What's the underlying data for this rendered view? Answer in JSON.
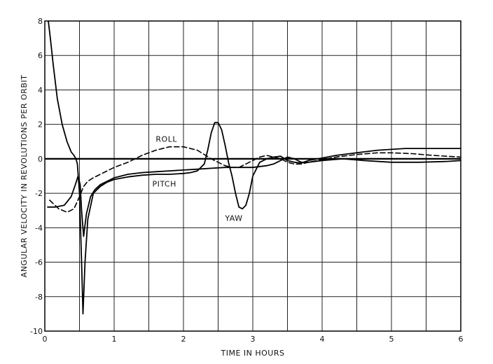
{
  "chart_data": {
    "type": "line",
    "title": "",
    "xlabel": "TIME IN HOURS",
    "ylabel": "ANGULAR VELOCITY IN REVOLUTIONS PER ORBIT",
    "xlim": [
      0,
      6
    ],
    "ylim": [
      -10,
      8
    ],
    "x_tick_values": [
      0,
      1,
      2,
      3,
      4,
      5,
      6
    ],
    "x_tick_labels": [
      "0",
      "1",
      "2",
      "3",
      "4",
      "5",
      "6"
    ],
    "x_grid_step": 0.5,
    "y_tick_values": [
      8,
      6,
      4,
      2,
      0,
      -2,
      -4,
      -6,
      -8,
      -10
    ],
    "y_tick_labels": [
      "8",
      "6",
      "4",
      "2",
      "0",
      "-2",
      "-4",
      "-6",
      "-8",
      "-10"
    ],
    "grid": true,
    "series": [
      {
        "name": "ROLL",
        "style": "dashed",
        "x": [
          0.07,
          0.2,
          0.32,
          0.42,
          0.5,
          0.56,
          0.62,
          0.7,
          0.8,
          0.9,
          1.0,
          1.2,
          1.4,
          1.6,
          1.8,
          2.0,
          2.2,
          2.4,
          2.6,
          2.7,
          2.8,
          2.9,
          3.0,
          3.1,
          3.2,
          3.3,
          3.4,
          3.45,
          3.5,
          3.6,
          3.7,
          3.8,
          4.0,
          4.2,
          4.5,
          4.8,
          5.0,
          5.3,
          5.6,
          5.8,
          6.0
        ],
        "y": [
          -2.4,
          -2.9,
          -3.1,
          -2.9,
          -2.2,
          -1.6,
          -1.3,
          -1.1,
          -0.9,
          -0.7,
          -0.5,
          -0.2,
          0.2,
          0.5,
          0.7,
          0.7,
          0.5,
          0.0,
          -0.4,
          -0.5,
          -0.5,
          -0.3,
          -0.1,
          0.1,
          0.2,
          0.1,
          0.0,
          -0.1,
          -0.2,
          -0.3,
          -0.3,
          -0.2,
          -0.05,
          0.1,
          0.25,
          0.35,
          0.35,
          0.3,
          0.2,
          0.15,
          0.1
        ]
      },
      {
        "name": "PITCH",
        "style": "solid",
        "x": [
          0.04,
          0.15,
          0.28,
          0.38,
          0.44,
          0.48,
          0.51,
          0.53,
          0.56,
          0.6,
          0.66,
          0.72,
          0.8,
          0.9,
          1.0,
          1.2,
          1.4,
          1.6,
          1.8,
          2.0,
          2.2,
          2.4,
          2.6,
          2.8,
          3.0,
          3.2,
          3.3,
          3.4,
          3.5,
          3.6,
          3.7,
          3.8,
          4.0,
          4.3,
          4.6,
          5.0,
          5.4,
          5.8,
          6.0
        ],
        "y": [
          -2.8,
          -2.8,
          -2.7,
          -2.2,
          -1.5,
          -1.0,
          -1.5,
          -3.0,
          -4.5,
          -3.2,
          -2.2,
          -1.8,
          -1.5,
          -1.3,
          -1.1,
          -0.9,
          -0.8,
          -0.75,
          -0.7,
          -0.65,
          -0.6,
          -0.55,
          -0.5,
          -0.5,
          -0.5,
          -0.4,
          -0.3,
          -0.1,
          0.1,
          0.0,
          -0.2,
          -0.2,
          -0.1,
          0.0,
          -0.1,
          -0.2,
          -0.2,
          -0.15,
          -0.1
        ]
      },
      {
        "name": "YAW",
        "style": "solid",
        "x": [
          0.05,
          0.08,
          0.12,
          0.18,
          0.25,
          0.32,
          0.38,
          0.42,
          0.45,
          0.47,
          0.5,
          0.53,
          0.55,
          0.58,
          0.62,
          0.7,
          0.8,
          0.9,
          1.0,
          1.2,
          1.4,
          1.6,
          1.8,
          2.0,
          2.1,
          2.2,
          2.3,
          2.35,
          2.4,
          2.45,
          2.5,
          2.55,
          2.6,
          2.65,
          2.7,
          2.75,
          2.8,
          2.85,
          2.9,
          2.95,
          3.0,
          3.1,
          3.2,
          3.3,
          3.4,
          3.5,
          3.6,
          3.7,
          3.8,
          4.0,
          4.2,
          4.4,
          4.6,
          4.8,
          5.0,
          5.2,
          5.4,
          5.6,
          5.8,
          6.0
        ],
        "y": [
          8.0,
          7.0,
          5.5,
          3.5,
          2.0,
          1.0,
          0.4,
          0.2,
          0.0,
          -0.3,
          -2.0,
          -6.0,
          -9.0,
          -6.0,
          -3.5,
          -2.0,
          -1.6,
          -1.35,
          -1.2,
          -1.05,
          -0.95,
          -0.9,
          -0.9,
          -0.85,
          -0.8,
          -0.7,
          -0.3,
          0.5,
          1.5,
          2.1,
          2.1,
          1.7,
          0.8,
          -0.2,
          -1.0,
          -2.0,
          -2.8,
          -2.9,
          -2.7,
          -2.0,
          -1.0,
          -0.2,
          0.0,
          0.1,
          0.15,
          -0.1,
          -0.2,
          -0.25,
          -0.1,
          0.05,
          0.2,
          0.3,
          0.4,
          0.5,
          0.55,
          0.6,
          0.6,
          0.6,
          0.6,
          0.6
        ]
      }
    ]
  }
}
